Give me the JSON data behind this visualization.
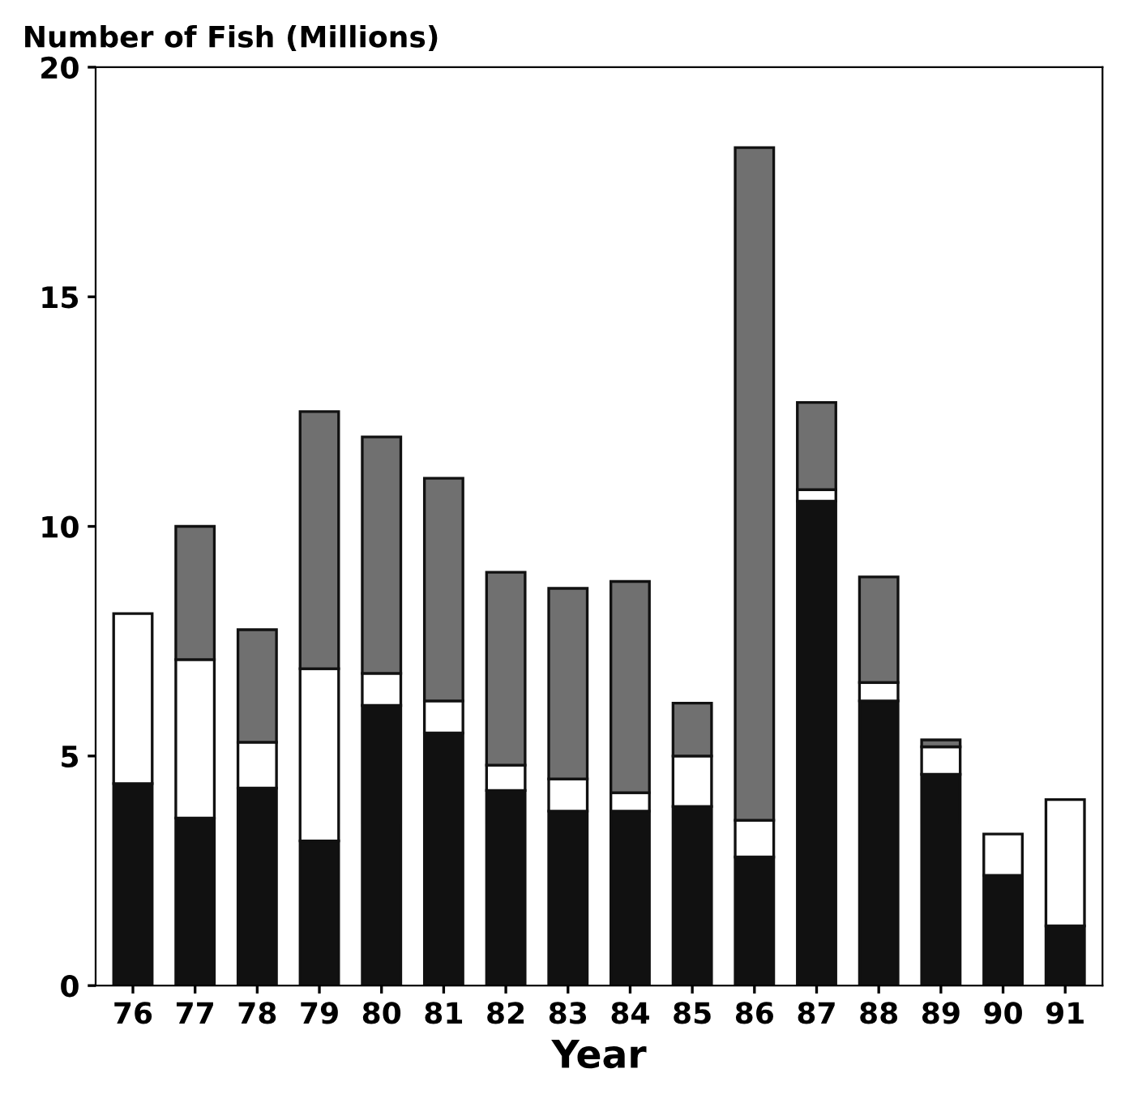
{
  "chart_data": {
    "type": "bar",
    "stacked": true,
    "ylabel": "Number of Fish (Millions)",
    "xlabel": "Year",
    "categories": [
      "76",
      "77",
      "78",
      "79",
      "80",
      "81",
      "82",
      "83",
      "84",
      "85",
      "86",
      "87",
      "88",
      "89",
      "90",
      "91"
    ],
    "series": [
      {
        "color": "#111111",
        "values": [
          4.4,
          3.65,
          4.3,
          3.15,
          6.1,
          5.5,
          4.25,
          3.8,
          3.8,
          3.9,
          2.8,
          10.55,
          6.2,
          4.6,
          2.4,
          1.3
        ]
      },
      {
        "color": "#ffffff",
        "values": [
          3.7,
          3.45,
          1.0,
          3.75,
          0.7,
          0.7,
          0.55,
          0.7,
          0.4,
          1.1,
          0.8,
          0.25,
          0.4,
          0.6,
          0.9,
          2.75
        ]
      },
      {
        "color": "#707070",
        "values": [
          null,
          2.9,
          2.45,
          5.6,
          5.15,
          4.85,
          4.2,
          4.15,
          4.6,
          1.15,
          14.65,
          1.9,
          2.3,
          0.15,
          null,
          null
        ]
      }
    ],
    "ylim": [
      0,
      20
    ],
    "yticks": [
      0,
      5,
      10,
      15,
      20
    ],
    "grid": false,
    "legend": false
  }
}
